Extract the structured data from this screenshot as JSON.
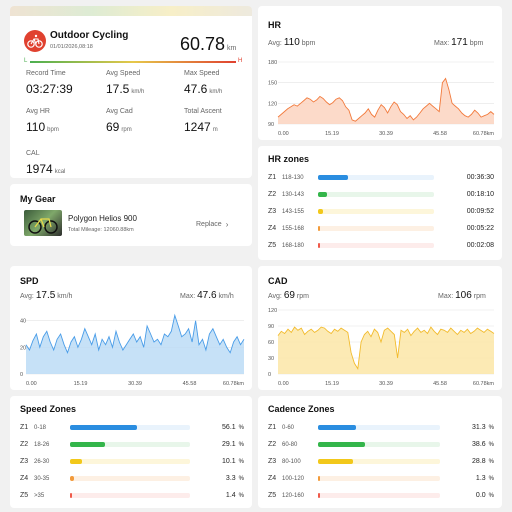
{
  "colors": {
    "accent_red": "#e0412f",
    "green": "#4caf50",
    "hr_line": "#f27a3c",
    "hr_fill": "#fbd3bf",
    "spd_line": "#4a9de8",
    "spd_fill": "#bcdcf6",
    "cad_line": "#f2bb2d",
    "cad_fill": "#fbe6a7",
    "zone_blue": "#2a8de0",
    "zone_green": "#33b54a",
    "zone_yellow": "#f2c81a",
    "zone_orange": "#f29a3a",
    "zone_red": "#ef5a4a"
  },
  "summary": {
    "icon": "bike-icon",
    "title": "Outdoor Cycling",
    "datetime": "01/01/2026,08:18",
    "distance": "60.78",
    "distance_unit": "km",
    "scale_left": "L",
    "scale_right": "H",
    "stats": [
      {
        "label": "Record Time",
        "value": "03:27:39",
        "unit": ""
      },
      {
        "label": "Avg Speed",
        "value": "17.5",
        "unit": "km/h"
      },
      {
        "label": "Max Speed",
        "value": "47.6",
        "unit": "km/h"
      },
      {
        "label": "Avg HR",
        "value": "110",
        "unit": "bpm"
      },
      {
        "label": "Avg Cad",
        "value": "69",
        "unit": "rpm"
      },
      {
        "label": "Total Ascent",
        "value": "1247",
        "unit": "m"
      },
      {
        "label": "CAL",
        "value": "1974",
        "unit": "kcal"
      }
    ]
  },
  "gear": {
    "title": "My Gear",
    "bike_name": "Polygon Helios 900",
    "mileage": "Total Mileage: 12060.88km",
    "replace_label": "Replace"
  },
  "hr": {
    "title": "HR",
    "avg_label": "Avg:",
    "avg_value": "110",
    "avg_unit": "bpm",
    "max_label": "Max:",
    "max_value": "171",
    "max_unit": "bpm"
  },
  "hr_zones": {
    "title": "HR zones",
    "zones": [
      {
        "name": "Z1",
        "range": "118-130",
        "value": "00:36:30",
        "fraction": 0.26
      },
      {
        "name": "Z2",
        "range": "130-143",
        "value": "00:18:10",
        "fraction": 0.08
      },
      {
        "name": "Z3",
        "range": "143-155",
        "value": "00:09:52",
        "fraction": 0.04
      },
      {
        "name": "Z4",
        "range": "155-168",
        "value": "00:05:22",
        "fraction": 0.02
      },
      {
        "name": "Z5",
        "range": "168-180",
        "value": "00:02:08",
        "fraction": 0.01
      }
    ]
  },
  "spd": {
    "title": "SPD",
    "avg_label": "Avg:",
    "avg_value": "17.5",
    "avg_unit": "km/h",
    "max_label": "Max:",
    "max_value": "47.6",
    "max_unit": "km/h"
  },
  "cad": {
    "title": "CAD",
    "avg_label": "Avg:",
    "avg_value": "69",
    "avg_unit": "rpm",
    "max_label": "Max:",
    "max_value": "106",
    "max_unit": "rpm"
  },
  "speed_zones": {
    "title": "Speed Zones",
    "zones": [
      {
        "name": "Z1",
        "range": "0-18",
        "value": "56.1",
        "unit": "%",
        "fraction": 0.561
      },
      {
        "name": "Z2",
        "range": "18-26",
        "value": "29.1",
        "unit": "%",
        "fraction": 0.291
      },
      {
        "name": "Z3",
        "range": "26-30",
        "value": "10.1",
        "unit": "%",
        "fraction": 0.101
      },
      {
        "name": "Z4",
        "range": "30-35",
        "value": "3.3",
        "unit": "%",
        "fraction": 0.033
      },
      {
        "name": "Z5",
        "range": ">35",
        "value": "1.4",
        "unit": "%",
        "fraction": 0.014
      }
    ]
  },
  "cadence_zones": {
    "title": "Cadence Zones",
    "zones": [
      {
        "name": "Z1",
        "range": "0-60",
        "value": "31.3",
        "unit": "%",
        "fraction": 0.313
      },
      {
        "name": "Z2",
        "range": "60-80",
        "value": "38.6",
        "unit": "%",
        "fraction": 0.386
      },
      {
        "name": "Z3",
        "range": "80-100",
        "value": "28.8",
        "unit": "%",
        "fraction": 0.288
      },
      {
        "name": "Z4",
        "range": "100-120",
        "value": "1.3",
        "unit": "%",
        "fraction": 0.013
      },
      {
        "name": "Z5",
        "range": "120-160",
        "value": "0.0",
        "unit": "%",
        "fraction": 0.0
      }
    ]
  },
  "chart_data": [
    {
      "type": "area",
      "series": [
        {
          "values": [
            100,
            104,
            108,
            112,
            115,
            118,
            116,
            120,
            124,
            128,
            126,
            122,
            125,
            130,
            127,
            122,
            118,
            121,
            126,
            128,
            124,
            115,
            110,
            96,
            94,
            98,
            102,
            106,
            112,
            104,
            100,
            110,
            118,
            114,
            106,
            115,
            122,
            118,
            108,
            104,
            98,
            102,
            96,
            100,
            106,
            112,
            116,
            120,
            116,
            112,
            108,
            150,
            156,
            140,
            120,
            116,
            112,
            106,
            102,
            100,
            104,
            110,
            106,
            100,
            102,
            104,
            108,
            104
          ]
        }
      ],
      "x_ticks": [
        "0.00",
        "15.19",
        "30.39",
        "45.58",
        "60.78km"
      ],
      "y_ticks": [
        90,
        120,
        150,
        180
      ],
      "ylim": [
        90,
        180
      ]
    },
    {
      "type": "area",
      "series": [
        {
          "values": [
            22,
            18,
            25,
            30,
            20,
            28,
            32,
            24,
            18,
            26,
            30,
            22,
            16,
            24,
            28,
            20,
            26,
            34,
            28,
            22,
            30,
            18,
            26,
            22,
            28,
            20,
            32,
            24,
            18,
            22,
            26,
            30,
            24,
            28,
            20,
            36,
            30,
            24,
            26,
            22,
            30,
            28,
            32,
            44,
            36,
            28,
            30,
            34,
            24,
            40,
            22,
            26,
            18,
            30,
            34,
            28,
            22,
            26,
            20,
            16,
            24,
            28,
            22,
            26
          ]
        }
      ],
      "x_ticks": [
        "0.00",
        "15.19",
        "30.39",
        "45.58",
        "60.78km"
      ],
      "y_ticks": [
        0,
        20,
        40
      ],
      "ylim": [
        0,
        48
      ]
    },
    {
      "type": "area",
      "series": [
        {
          "values": [
            72,
            80,
            76,
            84,
            78,
            88,
            82,
            86,
            74,
            80,
            84,
            78,
            82,
            88,
            86,
            80,
            76,
            84,
            80,
            86,
            82,
            78,
            40,
            20,
            10,
            60,
            74,
            80,
            70,
            84,
            78,
            60,
            82,
            86,
            80,
            74,
            30,
            82,
            78,
            84,
            72,
            80,
            86,
            78,
            82,
            76,
            88,
            80,
            74,
            84,
            82,
            78,
            86,
            80,
            74,
            82,
            78,
            84,
            76,
            80,
            86,
            82,
            78,
            84,
            80,
            76
          ]
        }
      ],
      "x_ticks": [
        "0.00",
        "15.19",
        "30.39",
        "45.58",
        "60.78km"
      ],
      "y_ticks": [
        0,
        30,
        60,
        90,
        120
      ],
      "ylim": [
        0,
        120
      ]
    }
  ]
}
